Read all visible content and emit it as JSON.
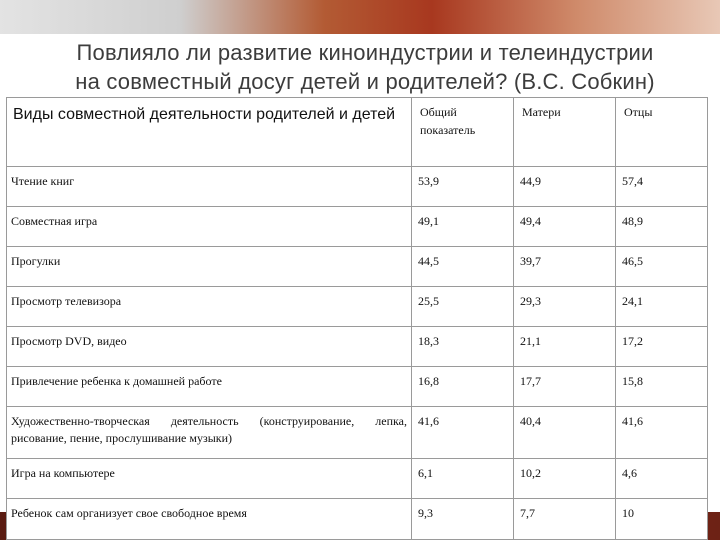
{
  "title": {
    "line1": "Повлияло ли развитие киноиндустрии и телеиндустрии",
    "line2": "на совместный досуг детей и родителей? (В.С. Собкин)"
  },
  "table": {
    "headers": [
      "Виды совместной деятельности родителей и детей",
      "Общий показатель",
      "Матери",
      "Отцы"
    ],
    "rows": [
      {
        "activity": "Чтение книг",
        "total": "53,9",
        "mothers": "44,9",
        "fathers": "57,4"
      },
      {
        "activity": "Совместная игра",
        "total": "49,1",
        "mothers": "49,4",
        "fathers": "48,9"
      },
      {
        "activity": "Прогулки",
        "total": "44,5",
        "mothers": "39,7",
        "fathers": "46,5"
      },
      {
        "activity": "Просмотр телевизора",
        "total": "25,5",
        "mothers": "29,3",
        "fathers": "24,1"
      },
      {
        "activity": "Просмотр DVD, видео",
        "total": "18,3",
        "mothers": "21,1",
        "fathers": "17,2"
      },
      {
        "activity": "Привлечение ребенка к домашней работе",
        "total": "16,8",
        "mothers": "17,7",
        "fathers": "15,8"
      },
      {
        "activity": "Художественно-творческая деятельность (конструирование, лепка, рисование, пение, прослушивание музыки)",
        "total": "41,6",
        "mothers": "40,4",
        "fathers": "41,6"
      },
      {
        "activity": "Игра на компьютере",
        "total": "6,1",
        "mothers": "10,2",
        "fathers": "4,6"
      },
      {
        "activity": "Ребенок сам организует свое свободное время",
        "total": "9,3",
        "mothers": "7,7",
        "fathers": "10"
      }
    ]
  }
}
